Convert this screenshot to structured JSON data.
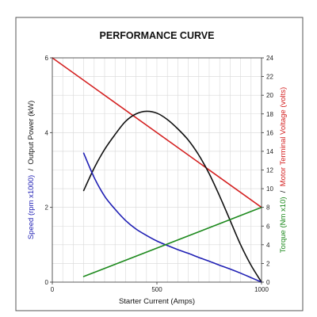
{
  "chart_data": {
    "type": "line",
    "title": "PERFORMANCE CURVE",
    "xlabel": "Starter Current (Amps)",
    "ylabel_left": {
      "parts": [
        {
          "text": "Speed (rpm x1000)",
          "color": "#1f1fb4"
        },
        {
          "text": "  /  ",
          "color": "#111111"
        },
        {
          "text": "Output Power (kW)",
          "color": "#111111"
        }
      ]
    },
    "ylabel_right": {
      "parts": [
        {
          "text": "Torque (Nm x10)",
          "color": "#1e8a1e"
        },
        {
          "text": "  /  ",
          "color": "#111111"
        },
        {
          "text": "Motor Terminal Voltage (volts)",
          "color": "#d42020"
        }
      ]
    },
    "xlim": [
      0,
      1000
    ],
    "ylim_left": [
      0,
      6
    ],
    "ylim_right": [
      0,
      24
    ],
    "x_ticks": [
      0,
      500,
      1000
    ],
    "x_tick_labels": [
      "0",
      "500",
      "1000"
    ],
    "y_left_ticks": [
      0,
      2,
      4,
      6
    ],
    "y_left_tick_labels": [
      "0",
      "2",
      "4",
      "6"
    ],
    "y_right_ticks": [
      0,
      2,
      4,
      6,
      8,
      10,
      12,
      14,
      16,
      18,
      20,
      22,
      24
    ],
    "y_right_tick_labels": [
      "0",
      "2",
      "4",
      "6",
      "8",
      "10",
      "12",
      "14",
      "16",
      "18",
      "20",
      "22",
      "24"
    ],
    "grid": true,
    "series": [
      {
        "color": "#d42020",
        "axis": "right",
        "x": [
          0,
          1000
        ],
        "y": [
          24,
          8
        ]
      },
      {
        "color": "#111111",
        "axis": "left",
        "x": [
          150,
          200,
          250,
          300,
          350,
          400,
          450,
          500,
          550,
          600,
          650,
          700,
          750,
          800,
          850,
          900,
          950,
          1000
        ],
        "y": [
          2.45,
          3.05,
          3.55,
          3.95,
          4.3,
          4.5,
          4.57,
          4.52,
          4.35,
          4.1,
          3.8,
          3.4,
          2.9,
          2.3,
          1.65,
          1.0,
          0.45,
          0.0
        ]
      },
      {
        "color": "#1f1fb4",
        "axis": "left",
        "x": [
          150,
          200,
          250,
          300,
          350,
          400,
          450,
          500,
          550,
          600,
          650,
          700,
          750,
          800,
          850,
          900,
          950,
          1000
        ],
        "y": [
          3.45,
          2.8,
          2.3,
          1.95,
          1.65,
          1.42,
          1.25,
          1.1,
          0.98,
          0.87,
          0.77,
          0.66,
          0.56,
          0.45,
          0.35,
          0.24,
          0.12,
          0.0
        ]
      },
      {
        "color": "#1e8a1e",
        "axis": "right",
        "x": [
          150,
          1000
        ],
        "y": [
          0.6,
          8
        ]
      }
    ]
  }
}
